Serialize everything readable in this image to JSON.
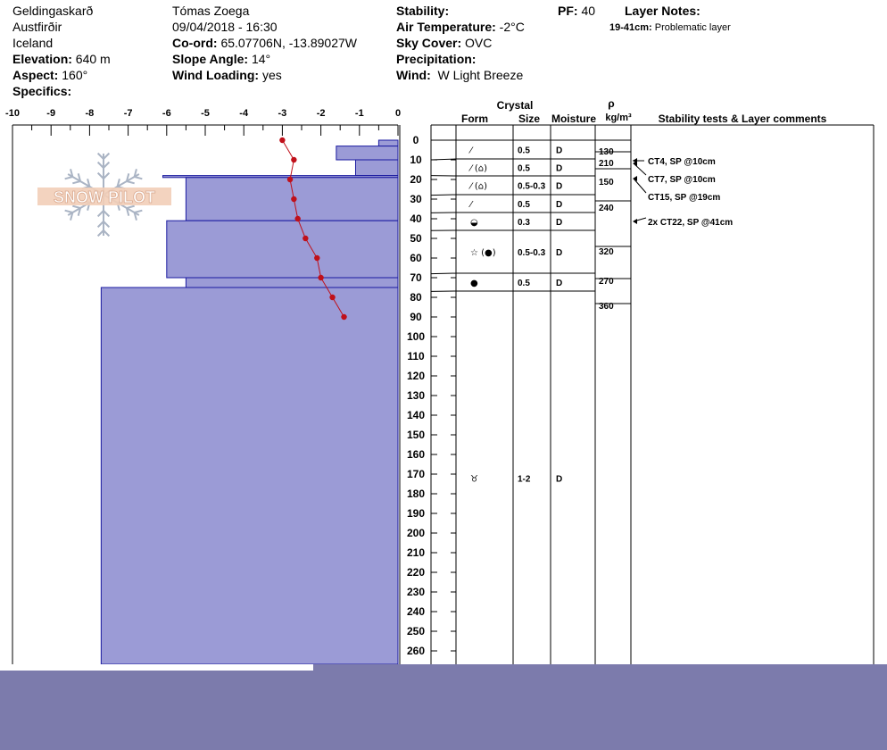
{
  "header": {
    "location": "Geldingaskarð",
    "region": "Austfirðir",
    "country": "Iceland",
    "elevation_label": "Elevation:",
    "elevation_value": "640 m",
    "aspect_label": "Aspect:",
    "aspect_value": "160°",
    "specifics_label": "Specifics:",
    "observer": "Tómas Zoega",
    "datetime": "09/04/2018 - 16:30",
    "coord_label": "Co-ord:",
    "coord_value": "65.07706N, -13.89027W",
    "slope_label": "Slope Angle:",
    "slope_value": "14°",
    "windload_label": "Wind Loading:",
    "windload_value": "yes",
    "stability_label": "Stability:",
    "airtemp_label": "Air Temperature:",
    "airtemp_value": "-2°C",
    "skycover_label": "Sky Cover:",
    "skycover_value": "OVC",
    "precip_label": "Precipitation:",
    "wind_label": "Wind:",
    "wind_value": "W Light Breeze",
    "pf_label": "PF:",
    "pf_value": "40",
    "layer_notes_label": "Layer Notes:",
    "layer_note_depth": "19-41cm:",
    "layer_note_text": "Problematic layer"
  },
  "columns": {
    "crystal": "Crystal",
    "form": "Form",
    "size": "Size",
    "moisture": "Moisture",
    "rho": "ρ",
    "density_unit": "kg/m³",
    "stability": "Stability tests & Layer comments"
  },
  "logo": {
    "text": "SNOW PILOT"
  },
  "chart_data": {
    "type": "bar",
    "title": "",
    "xlabel": "",
    "ylabel": "",
    "xlim": [
      -10,
      0
    ],
    "ylim": [
      0,
      265
    ],
    "x_ticks": [
      -10,
      -9,
      -8,
      -7,
      -6,
      -5,
      -4,
      -3,
      -2,
      -1,
      0
    ],
    "y_ticks": [
      0,
      10,
      20,
      30,
      40,
      50,
      60,
      70,
      80,
      90,
      100,
      110,
      120,
      130,
      140,
      150,
      160,
      170,
      180,
      190,
      200,
      210,
      220,
      230,
      240,
      250,
      260
    ],
    "hardness_profile": [
      {
        "top": 0,
        "bottom": 3,
        "hardness": -0.5
      },
      {
        "top": 3,
        "bottom": 10,
        "hardness": -1.6
      },
      {
        "top": 10,
        "bottom": 18,
        "hardness": -1.1
      },
      {
        "top": 18,
        "bottom": 19,
        "hardness": -6.1
      },
      {
        "top": 19,
        "bottom": 41,
        "hardness": -5.5
      },
      {
        "top": 41,
        "bottom": 70,
        "hardness": -6.0
      },
      {
        "top": 70,
        "bottom": 75,
        "hardness": -5.5
      },
      {
        "top": 75,
        "bottom": 270,
        "hardness": -7.7
      }
    ],
    "temperature_series": {
      "depth": [
        0,
        10,
        20,
        30,
        40,
        50,
        60,
        70,
        80,
        90
      ],
      "temp": [
        -3.0,
        -2.7,
        -2.8,
        -2.7,
        -2.6,
        -2.4,
        -2.1,
        -2.0,
        -1.7,
        -1.4
      ]
    },
    "layers": [
      {
        "top": 0,
        "bottom": 10,
        "form": "⁄",
        "size": "0.5",
        "moisture": "D"
      },
      {
        "top": 10,
        "bottom": 18,
        "form": "⁄ (⌂)",
        "size": "0.5",
        "moisture": "D"
      },
      {
        "top": 18,
        "bottom": 28,
        "form": "⁄ (⌂)",
        "size": "0.5-0.3",
        "moisture": "D"
      },
      {
        "top": 28,
        "bottom": 37,
        "form": "⁄",
        "size": "0.5",
        "moisture": "D"
      },
      {
        "top": 37,
        "bottom": 46,
        "form": "◒",
        "size": "0.3",
        "moisture": "D"
      },
      {
        "top": 46,
        "bottom": 68,
        "form": "☆ (●)",
        "size": "0.5-0.3",
        "moisture": "D"
      },
      {
        "top": 68,
        "bottom": 77,
        "form": "●",
        "size": "0.5",
        "moisture": "D"
      },
      {
        "top": 77,
        "bottom": 270,
        "form": "♉",
        "size": "1-2",
        "moisture": "D"
      }
    ],
    "density": [
      {
        "depth": 5,
        "value": "130"
      },
      {
        "depth": 10,
        "value": "210"
      },
      {
        "depth": 18,
        "value": "150"
      },
      {
        "depth": 33,
        "value": "240"
      },
      {
        "depth": 58,
        "value": "320"
      },
      {
        "depth": 76,
        "value": "270"
      },
      {
        "depth": 88,
        "value": "360"
      }
    ],
    "stability_tests": [
      {
        "depth": 10,
        "text": "CT4, SP @10cm"
      },
      {
        "depth": 10,
        "text": "CT7, SP @10cm"
      },
      {
        "depth": 19,
        "text": "CT15, SP @19cm"
      },
      {
        "depth": 41,
        "text": "2x CT22, SP @41cm"
      }
    ]
  }
}
